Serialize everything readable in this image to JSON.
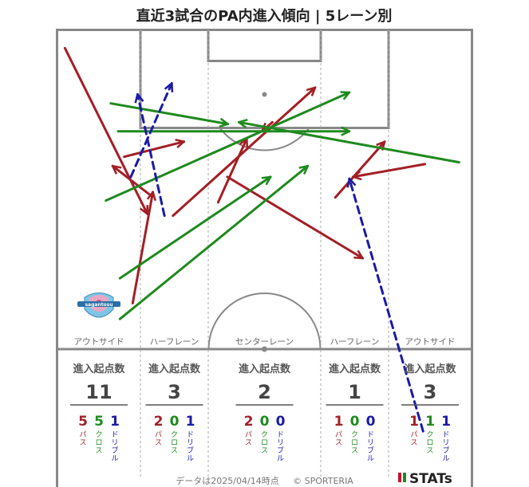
{
  "title": "直近3試合のPA内進入傾向 | 5レーン別",
  "footer": {
    "data_date": "データは2025/04/14時点",
    "copyright": "© SPORTERIA",
    "brand": "STATs"
  },
  "logo": {
    "text": "sagantosu"
  },
  "colors": {
    "pass": "#a31f25",
    "cross": "#1e8a1e",
    "dribble": "#1a1aa8",
    "pitch_line": "#888888",
    "lane_line": "#aaaaaa"
  },
  "chart_data": {
    "type": "arrow-map",
    "pitch": {
      "width": 68,
      "length": 52.5
    },
    "lane_labels": [
      "アウトサイド",
      "ハーフレーン",
      "センターレーン",
      "ハーフレーン",
      "アウトサイド"
    ],
    "stat_header": "進入起点数",
    "category_labels": {
      "pass": "パス",
      "cross": "クロス",
      "dribble": "ドリブル"
    },
    "lanes": [
      {
        "name": "アウトサイド",
        "total": 11,
        "pass": 5,
        "cross": 5,
        "dribble": 1
      },
      {
        "name": "ハーフレーン",
        "total": 3,
        "pass": 2,
        "cross": 0,
        "dribble": 1
      },
      {
        "name": "センターレーン",
        "total": 2,
        "pass": 2,
        "cross": 0,
        "dribble": 0
      },
      {
        "name": "ハーフレーン",
        "total": 1,
        "pass": 1,
        "cross": 0,
        "dribble": 0
      },
      {
        "name": "アウトサイド",
        "total": 3,
        "pass": 1,
        "cross": 1,
        "dribble": 1
      }
    ],
    "arrows": [
      {
        "type": "pass",
        "from": [
          1.3,
          3.0
        ],
        "to": [
          14.8,
          30.3
        ]
      },
      {
        "type": "pass",
        "from": [
          12.4,
          45.0
        ],
        "to": [
          15.7,
          26.7
        ]
      },
      {
        "type": "pass",
        "from": [
          15.4,
          27.3
        ],
        "to": [
          9.1,
          22.4
        ]
      },
      {
        "type": "pass",
        "from": [
          11.0,
          20.9
        ],
        "to": [
          20.8,
          18.4
        ]
      },
      {
        "type": "pass",
        "from": [
          19.0,
          30.6
        ],
        "to": [
          42.3,
          9.5
        ]
      },
      {
        "type": "pass",
        "from": [
          26.4,
          28.4
        ],
        "to": [
          31.1,
          17.9
        ]
      },
      {
        "type": "pass",
        "from": [
          27.9,
          24.2
        ],
        "to": [
          50.1,
          37.6
        ]
      },
      {
        "type": "pass",
        "from": [
          35.3,
          15.2
        ],
        "to": [
          33.6,
          16.7
        ]
      },
      {
        "type": "pass",
        "from": [
          45.6,
          27.6
        ],
        "to": [
          53.7,
          18.4
        ]
      },
      {
        "type": "pass",
        "from": [
          60.3,
          22.1
        ],
        "to": [
          48.5,
          24.2
        ]
      },
      {
        "type": "cross",
        "from": [
          8.8,
          12.1
        ],
        "to": [
          28.0,
          15.5
        ]
      },
      {
        "type": "cross",
        "from": [
          10.0,
          16.7
        ],
        "to": [
          47.9,
          16.7
        ]
      },
      {
        "type": "cross",
        "from": [
          8.0,
          28.1
        ],
        "to": [
          47.9,
          10.3
        ]
      },
      {
        "type": "cross",
        "from": [
          10.3,
          40.9
        ],
        "to": [
          35.0,
          24.2
        ]
      },
      {
        "type": "cross",
        "from": [
          10.3,
          47.6
        ],
        "to": [
          41.1,
          22.4
        ]
      },
      {
        "type": "cross",
        "from": [
          65.9,
          21.8
        ],
        "to": [
          29.8,
          15.2
        ]
      },
      {
        "type": "dribble",
        "from": [
          17.6,
          30.6
        ],
        "to": [
          13.2,
          10.6
        ]
      },
      {
        "type": "dribble",
        "from": [
          12.1,
          24.2
        ],
        "to": [
          18.8,
          8.8
        ]
      },
      {
        "type": "dribble",
        "from": [
          60.0,
          66.1
        ],
        "to": [
          47.9,
          24.5
        ]
      }
    ]
  }
}
